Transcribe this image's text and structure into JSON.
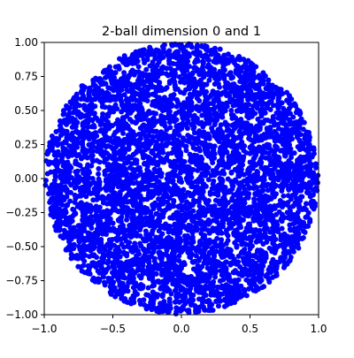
{
  "chart_data": {
    "type": "scatter",
    "title": "2-ball dimension 0 and 1",
    "xlabel": "",
    "ylabel": "",
    "xlim": [
      -1.0,
      1.0
    ],
    "ylim": [
      -1.0,
      1.0
    ],
    "xticks": [
      -1.0,
      -0.5,
      0.0,
      0.5,
      1.0
    ],
    "xtick_labels": [
      "−1.0",
      "−0.5",
      "0.0",
      "0.5",
      "1.0"
    ],
    "yticks": [
      -1.0,
      -0.75,
      -0.5,
      -0.25,
      0.0,
      0.25,
      0.5,
      0.75,
      1.0
    ],
    "ytick_labels": [
      "−1.00",
      "−0.75",
      "−0.50",
      "−0.25",
      "0.00",
      "0.25",
      "0.50",
      "0.75",
      "1.00"
    ],
    "grid": false,
    "legend": "none",
    "series": [
      {
        "color": "#0000ff",
        "marker": "circle",
        "distribution": "points uniformly filling the unit disk x^2 + y^2 <= 1"
      }
    ]
  }
}
